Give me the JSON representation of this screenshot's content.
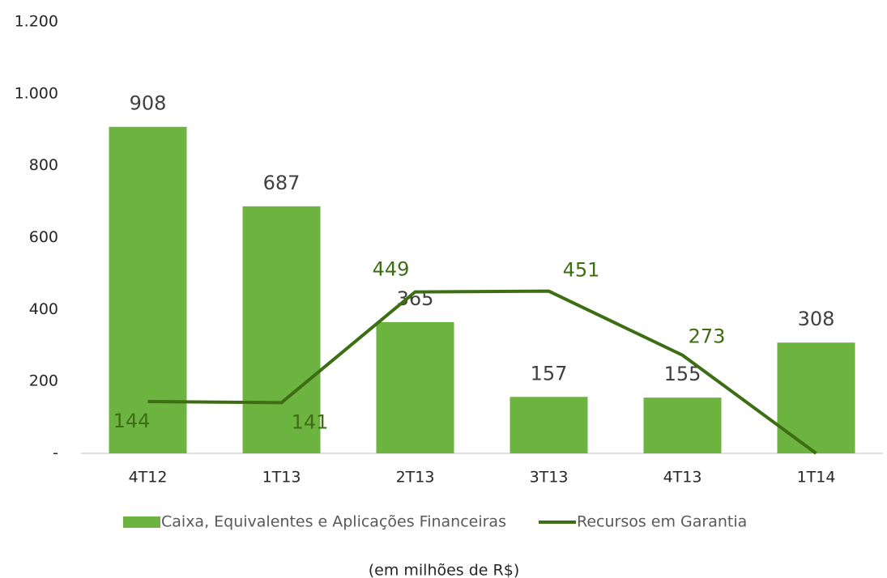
{
  "chart_data": {
    "type": "bar-line",
    "categories": [
      "4T12",
      "1T13",
      "2T13",
      "3T13",
      "4T13",
      "1T14"
    ],
    "series": [
      {
        "name": "Caixa, Equivalentes e Aplicações Financeiras",
        "type": "bar",
        "color": "#6db33f",
        "values": [
          908,
          687,
          365,
          157,
          155,
          308
        ]
      },
      {
        "name": "Recursos em Garantia",
        "type": "line",
        "color": "#3d6e14",
        "values": [
          144,
          141,
          449,
          451,
          273,
          0
        ],
        "value_labels": [
          "144",
          "141",
          "449",
          "451",
          "273",
          null
        ]
      }
    ],
    "ylim": [
      0,
      1200
    ],
    "yticks": [
      {
        "value": 0,
        "label": "-"
      },
      200,
      400,
      600,
      800,
      {
        "value": 1000,
        "label": "1.000"
      },
      {
        "value": 1200,
        "label": "1.200"
      }
    ],
    "legend": "bottom",
    "note": "(em milhões de R$)"
  }
}
